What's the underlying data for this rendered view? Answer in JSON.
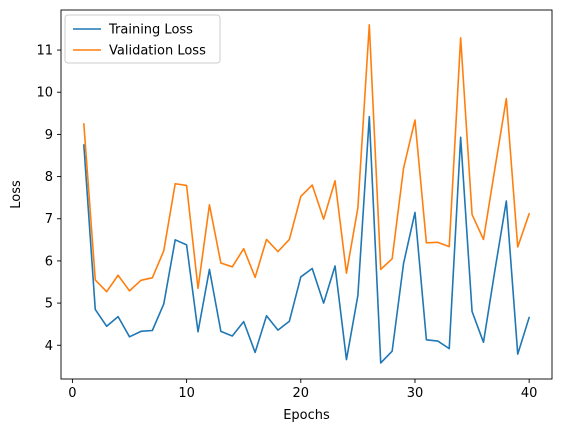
{
  "chart_data": {
    "type": "line",
    "title": "",
    "xlabel": "Epochs",
    "ylabel": "Loss",
    "xlim": [
      -1,
      42
    ],
    "ylim": [
      3.2,
      11.95
    ],
    "xticks": [
      0,
      10,
      20,
      30,
      40
    ],
    "yticks": [
      4,
      5,
      6,
      7,
      8,
      9,
      10,
      11
    ],
    "grid": false,
    "legend_position": "top-left",
    "x": [
      1,
      2,
      3,
      4,
      5,
      6,
      7,
      8,
      9,
      10,
      11,
      12,
      13,
      14,
      15,
      16,
      17,
      18,
      19,
      20,
      21,
      22,
      23,
      24,
      25,
      26,
      27,
      28,
      29,
      30,
      31,
      32,
      33,
      34,
      35,
      36,
      37,
      38,
      39,
      40
    ],
    "series": [
      {
        "name": "Training Loss",
        "color": "#1f77b4",
        "values": [
          8.75,
          4.85,
          4.45,
          4.68,
          4.2,
          4.33,
          4.35,
          4.98,
          6.5,
          6.38,
          4.32,
          5.8,
          4.33,
          4.22,
          4.56,
          3.83,
          4.7,
          4.36,
          4.57,
          5.62,
          5.82,
          5.0,
          5.88,
          3.66,
          5.18,
          9.42,
          3.58,
          3.86,
          5.94,
          7.15,
          4.13,
          4.1,
          3.92,
          8.93,
          4.8,
          4.07,
          5.78,
          7.42,
          3.79,
          4.66
        ]
      },
      {
        "name": "Validation Loss",
        "color": "#ff7f0e",
        "values": [
          9.25,
          5.55,
          5.27,
          5.66,
          5.29,
          5.54,
          5.6,
          6.24,
          7.83,
          7.79,
          5.35,
          7.33,
          5.95,
          5.86,
          6.29,
          5.61,
          6.51,
          6.22,
          6.51,
          7.53,
          7.8,
          6.99,
          7.9,
          5.71,
          7.26,
          11.6,
          5.8,
          6.05,
          8.2,
          9.34,
          6.43,
          6.44,
          6.34,
          11.29,
          7.1,
          6.51,
          8.19,
          9.85,
          6.33,
          7.12
        ]
      }
    ]
  }
}
